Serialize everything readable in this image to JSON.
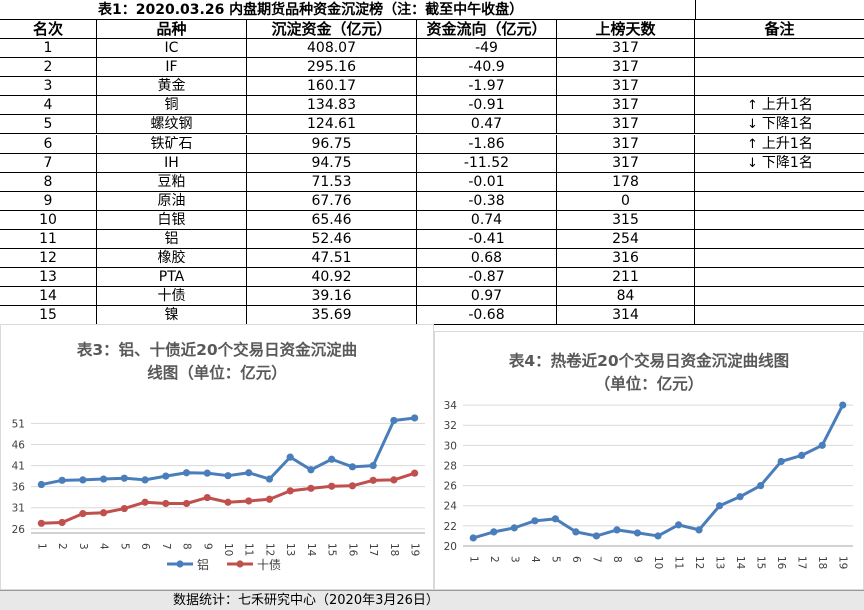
{
  "table": {
    "title": "表1：2020.03.26 内盘期货品种资金沉淀榜（注：截至中午收盘）",
    "headers": [
      "名次",
      "品种",
      "沉淀资金（亿元）",
      "资金流向（亿元）",
      "上榜天数",
      "备注"
    ],
    "rows": [
      [
        "1",
        "IC",
        "408.07",
        "-49",
        "317",
        ""
      ],
      [
        "2",
        "IF",
        "295.16",
        "-40.9",
        "317",
        ""
      ],
      [
        "3",
        "黄金",
        "160.17",
        "-1.97",
        "317",
        ""
      ],
      [
        "4",
        "铜",
        "134.83",
        "-0.91",
        "317",
        "上升1名"
      ],
      [
        "5",
        "螺纹钢",
        "124.61",
        "0.47",
        "317",
        "下降1名"
      ],
      [
        "6",
        "铁矿石",
        "96.75",
        "-1.86",
        "317",
        "上升1名"
      ],
      [
        "7",
        "IH",
        "94.75",
        "-11.52",
        "317",
        "下降1名"
      ],
      [
        "8",
        "豆粕",
        "71.53",
        "-0.01",
        "178",
        ""
      ],
      [
        "9",
        "原油",
        "67.76",
        "-0.38",
        "0",
        ""
      ],
      [
        "10",
        "白银",
        "65.46",
        "0.74",
        "315",
        ""
      ],
      [
        "11",
        "铝",
        "52.46",
        "-0.41",
        "254",
        ""
      ],
      [
        "12",
        "橡胶",
        "47.51",
        "0.68",
        "316",
        ""
      ],
      [
        "13",
        "PTA",
        "40.92",
        "-0.87",
        "211",
        ""
      ],
      [
        "14",
        "十债",
        "39.16",
        "0.97",
        "84",
        ""
      ],
      [
        "15",
        "镍",
        "35.69",
        "-0.68",
        "314",
        ""
      ]
    ],
    "note_arrows": {
      "上升1名": "up",
      "下降1名": "down"
    }
  },
  "chart_data": [
    {
      "type": "line",
      "title_line1": "表3：铝、十债近20个交易日资金沉淀曲",
      "title_line2": "线图（单位：亿元）",
      "x": [
        "1",
        "2",
        "3",
        "4",
        "5",
        "6",
        "7",
        "8",
        "9",
        "10",
        "11",
        "12",
        "13",
        "14",
        "15",
        "16",
        "17",
        "18",
        "19"
      ],
      "yticks": [
        "26",
        "31",
        "36",
        "41",
        "46",
        "51"
      ],
      "ylim": [
        25,
        53
      ],
      "series": [
        {
          "name": "铝",
          "color": "#4a7ebb",
          "values": [
            36.5,
            37.5,
            37.6,
            37.8,
            38.0,
            37.6,
            38.5,
            39.3,
            39.2,
            38.6,
            39.3,
            37.8,
            43.0,
            40.0,
            42.5,
            40.7,
            41.0,
            51.7,
            52.3
          ]
        },
        {
          "name": "十债",
          "color": "#c0504d",
          "values": [
            27.3,
            27.5,
            29.6,
            29.8,
            30.8,
            32.3,
            32.0,
            32.0,
            33.4,
            32.3,
            32.6,
            33.0,
            35.0,
            35.6,
            36.1,
            36.2,
            37.5,
            37.6,
            39.2
          ]
        }
      ],
      "legend": "bottom"
    },
    {
      "type": "line",
      "title_line1": "表4：热卷近20个交易日资金沉淀曲线图",
      "title_line2": "（单位：亿元）",
      "x": [
        "1",
        "2",
        "3",
        "4",
        "5",
        "6",
        "7",
        "8",
        "9",
        "10",
        "11",
        "12",
        "13",
        "14",
        "15",
        "16",
        "17",
        "18",
        "19"
      ],
      "yticks": [
        "20",
        "22",
        "24",
        "26",
        "28",
        "30",
        "32",
        "34"
      ],
      "ylim": [
        20,
        35
      ],
      "series": [
        {
          "name": "热卷",
          "color": "#4a7ebb",
          "values": [
            20.8,
            21.4,
            21.8,
            22.5,
            22.7,
            21.4,
            21.0,
            21.6,
            21.3,
            21.0,
            22.1,
            21.6,
            24.0,
            24.9,
            26.0,
            28.4,
            29.0,
            30.0,
            34.0
          ]
        }
      ],
      "legend": "none"
    }
  ],
  "footer": {
    "text": "数据统计：七禾研究中心（2020年3月26日）"
  }
}
